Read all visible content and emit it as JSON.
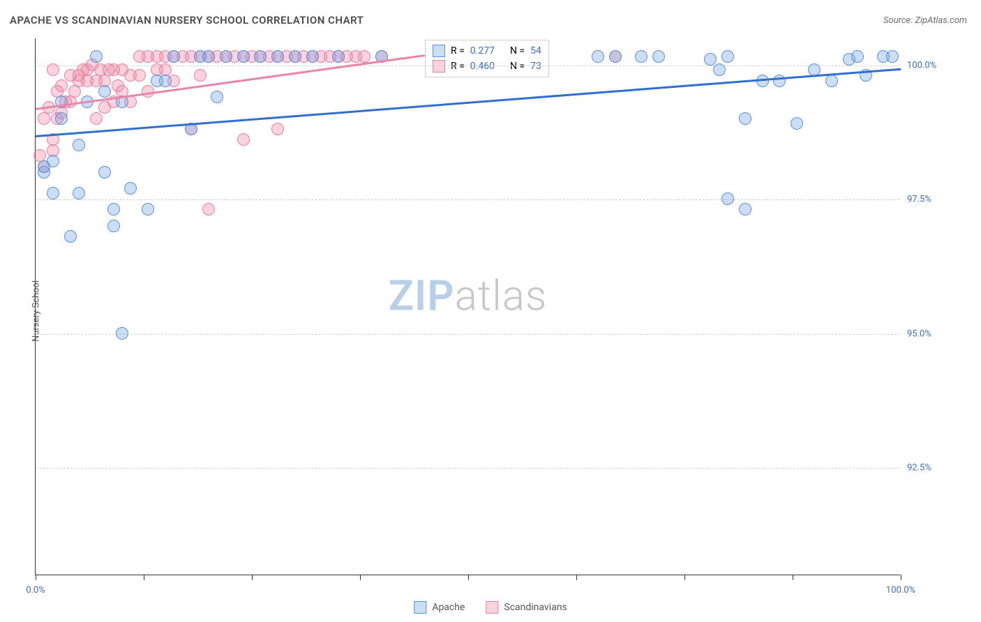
{
  "title": "APACHE VS SCANDINAVIAN NURSERY SCHOOL CORRELATION CHART",
  "source": "Source: ZipAtlas.com",
  "ylabel": "Nursery School",
  "watermark": {
    "zip": "ZIP",
    "atlas": "atlas",
    "zip_color": "#b8cfe8",
    "atlas_color": "#c7c7c7"
  },
  "colors": {
    "series_a_fill": "rgba(110,160,230,0.35)",
    "series_a_stroke": "#5a8fd6",
    "series_b_fill": "rgba(240,130,160,0.35)",
    "series_b_stroke": "#e4809f",
    "trend_a": "#2f6fd0",
    "trend_b": "#e986a5",
    "tick_label": "#3b6fb5",
    "text": "#4a4a4a"
  },
  "axes": {
    "xlim": [
      0,
      100
    ],
    "ylim": [
      90.5,
      100.5
    ],
    "yticks": [
      {
        "v": 100.0,
        "label": "100.0%"
      },
      {
        "v": 97.5,
        "label": "97.5%"
      },
      {
        "v": 95.0,
        "label": "95.0%"
      },
      {
        "v": 92.5,
        "label": "92.5%"
      }
    ],
    "xticks": [
      0,
      12.5,
      25,
      37.5,
      50,
      62.5,
      75,
      87.5,
      100
    ],
    "xtick_labels": {
      "0": "0.0%",
      "100": "100.0%"
    }
  },
  "marker_radius": 9,
  "stats": {
    "a": {
      "R_label": "R =",
      "R": "0.277",
      "N_label": "N =",
      "N": "54"
    },
    "b": {
      "R_label": "R =",
      "R": "0.460",
      "N_label": "N =",
      "N": "73"
    }
  },
  "legend": {
    "a": "Apache",
    "b": "Scandinavians"
  },
  "trend_lines": {
    "a": {
      "x1": 0,
      "y1": 98.7,
      "x2": 100,
      "y2": 99.95
    },
    "b": {
      "x1": 0,
      "y1": 99.2,
      "x2": 45,
      "y2": 100.2
    }
  },
  "series_a": [
    [
      1,
      98.0
    ],
    [
      1,
      98.1
    ],
    [
      2,
      97.6
    ],
    [
      2,
      98.2
    ],
    [
      3,
      99.3
    ],
    [
      3,
      99.0
    ],
    [
      4,
      96.8
    ],
    [
      5,
      98.5
    ],
    [
      5,
      97.6
    ],
    [
      6,
      99.3
    ],
    [
      7,
      100.15
    ],
    [
      8,
      98.0
    ],
    [
      8,
      99.5
    ],
    [
      9,
      97.0
    ],
    [
      9,
      97.3
    ],
    [
      10,
      95.0
    ],
    [
      10,
      99.3
    ],
    [
      11,
      97.7
    ],
    [
      13,
      97.3
    ],
    [
      14,
      99.7
    ],
    [
      15,
      99.7
    ],
    [
      16,
      100.15
    ],
    [
      18,
      98.8
    ],
    [
      19,
      100.15
    ],
    [
      20,
      100.15
    ],
    [
      21,
      99.4
    ],
    [
      22,
      100.15
    ],
    [
      24,
      100.15
    ],
    [
      26,
      100.15
    ],
    [
      28,
      100.15
    ],
    [
      30,
      100.15
    ],
    [
      32,
      100.15
    ],
    [
      35,
      100.15
    ],
    [
      40,
      100.15
    ],
    [
      65,
      100.15
    ],
    [
      67,
      100.15
    ],
    [
      70,
      100.15
    ],
    [
      72,
      100.15
    ],
    [
      78,
      100.1
    ],
    [
      79,
      99.9
    ],
    [
      80,
      100.15
    ],
    [
      80,
      97.5
    ],
    [
      82,
      97.3
    ],
    [
      82,
      99.0
    ],
    [
      84,
      99.7
    ],
    [
      86,
      99.7
    ],
    [
      88,
      98.9
    ],
    [
      90,
      99.9
    ],
    [
      92,
      99.7
    ],
    [
      94,
      100.1
    ],
    [
      95,
      100.15
    ],
    [
      96,
      99.8
    ],
    [
      98,
      100.15
    ],
    [
      99,
      100.15
    ]
  ],
  "series_b": [
    [
      0.5,
      98.3
    ],
    [
      1,
      98.1
    ],
    [
      1,
      99.0
    ],
    [
      1.5,
      99.2
    ],
    [
      2,
      98.4
    ],
    [
      2,
      98.6
    ],
    [
      2,
      99.9
    ],
    [
      2.5,
      99.5
    ],
    [
      2.5,
      99.0
    ],
    [
      3,
      99.1
    ],
    [
      3,
      99.6
    ],
    [
      3.5,
      99.3
    ],
    [
      4,
      99.3
    ],
    [
      4,
      99.8
    ],
    [
      4.5,
      99.5
    ],
    [
      5,
      99.7
    ],
    [
      5,
      99.8
    ],
    [
      5.5,
      99.9
    ],
    [
      6,
      99.7
    ],
    [
      6,
      99.9
    ],
    [
      6.5,
      100.0
    ],
    [
      7,
      99.0
    ],
    [
      7,
      99.7
    ],
    [
      7.5,
      99.9
    ],
    [
      8,
      99.2
    ],
    [
      8,
      99.7
    ],
    [
      8.5,
      99.9
    ],
    [
      9,
      99.3
    ],
    [
      9,
      99.9
    ],
    [
      9.5,
      99.6
    ],
    [
      10,
      99.5
    ],
    [
      10,
      99.9
    ],
    [
      11,
      99.8
    ],
    [
      11,
      99.3
    ],
    [
      12,
      99.8
    ],
    [
      12,
      100.15
    ],
    [
      13,
      99.5
    ],
    [
      13,
      100.15
    ],
    [
      14,
      99.9
    ],
    [
      14,
      100.15
    ],
    [
      15,
      100.15
    ],
    [
      15,
      99.9
    ],
    [
      16,
      99.7
    ],
    [
      16,
      100.15
    ],
    [
      17,
      100.15
    ],
    [
      18,
      98.8
    ],
    [
      18,
      100.15
    ],
    [
      19,
      100.15
    ],
    [
      19,
      99.8
    ],
    [
      20,
      97.3
    ],
    [
      20,
      100.15
    ],
    [
      21,
      100.15
    ],
    [
      22,
      100.15
    ],
    [
      23,
      100.15
    ],
    [
      24,
      100.15
    ],
    [
      24,
      98.6
    ],
    [
      25,
      100.15
    ],
    [
      26,
      100.15
    ],
    [
      27,
      100.15
    ],
    [
      28,
      98.8
    ],
    [
      28,
      100.15
    ],
    [
      29,
      100.15
    ],
    [
      30,
      100.15
    ],
    [
      31,
      100.15
    ],
    [
      32,
      100.15
    ],
    [
      33,
      100.15
    ],
    [
      34,
      100.15
    ],
    [
      35,
      100.15
    ],
    [
      36,
      100.15
    ],
    [
      37,
      100.15
    ],
    [
      38,
      100.15
    ],
    [
      40,
      100.15
    ],
    [
      67,
      100.15
    ]
  ]
}
